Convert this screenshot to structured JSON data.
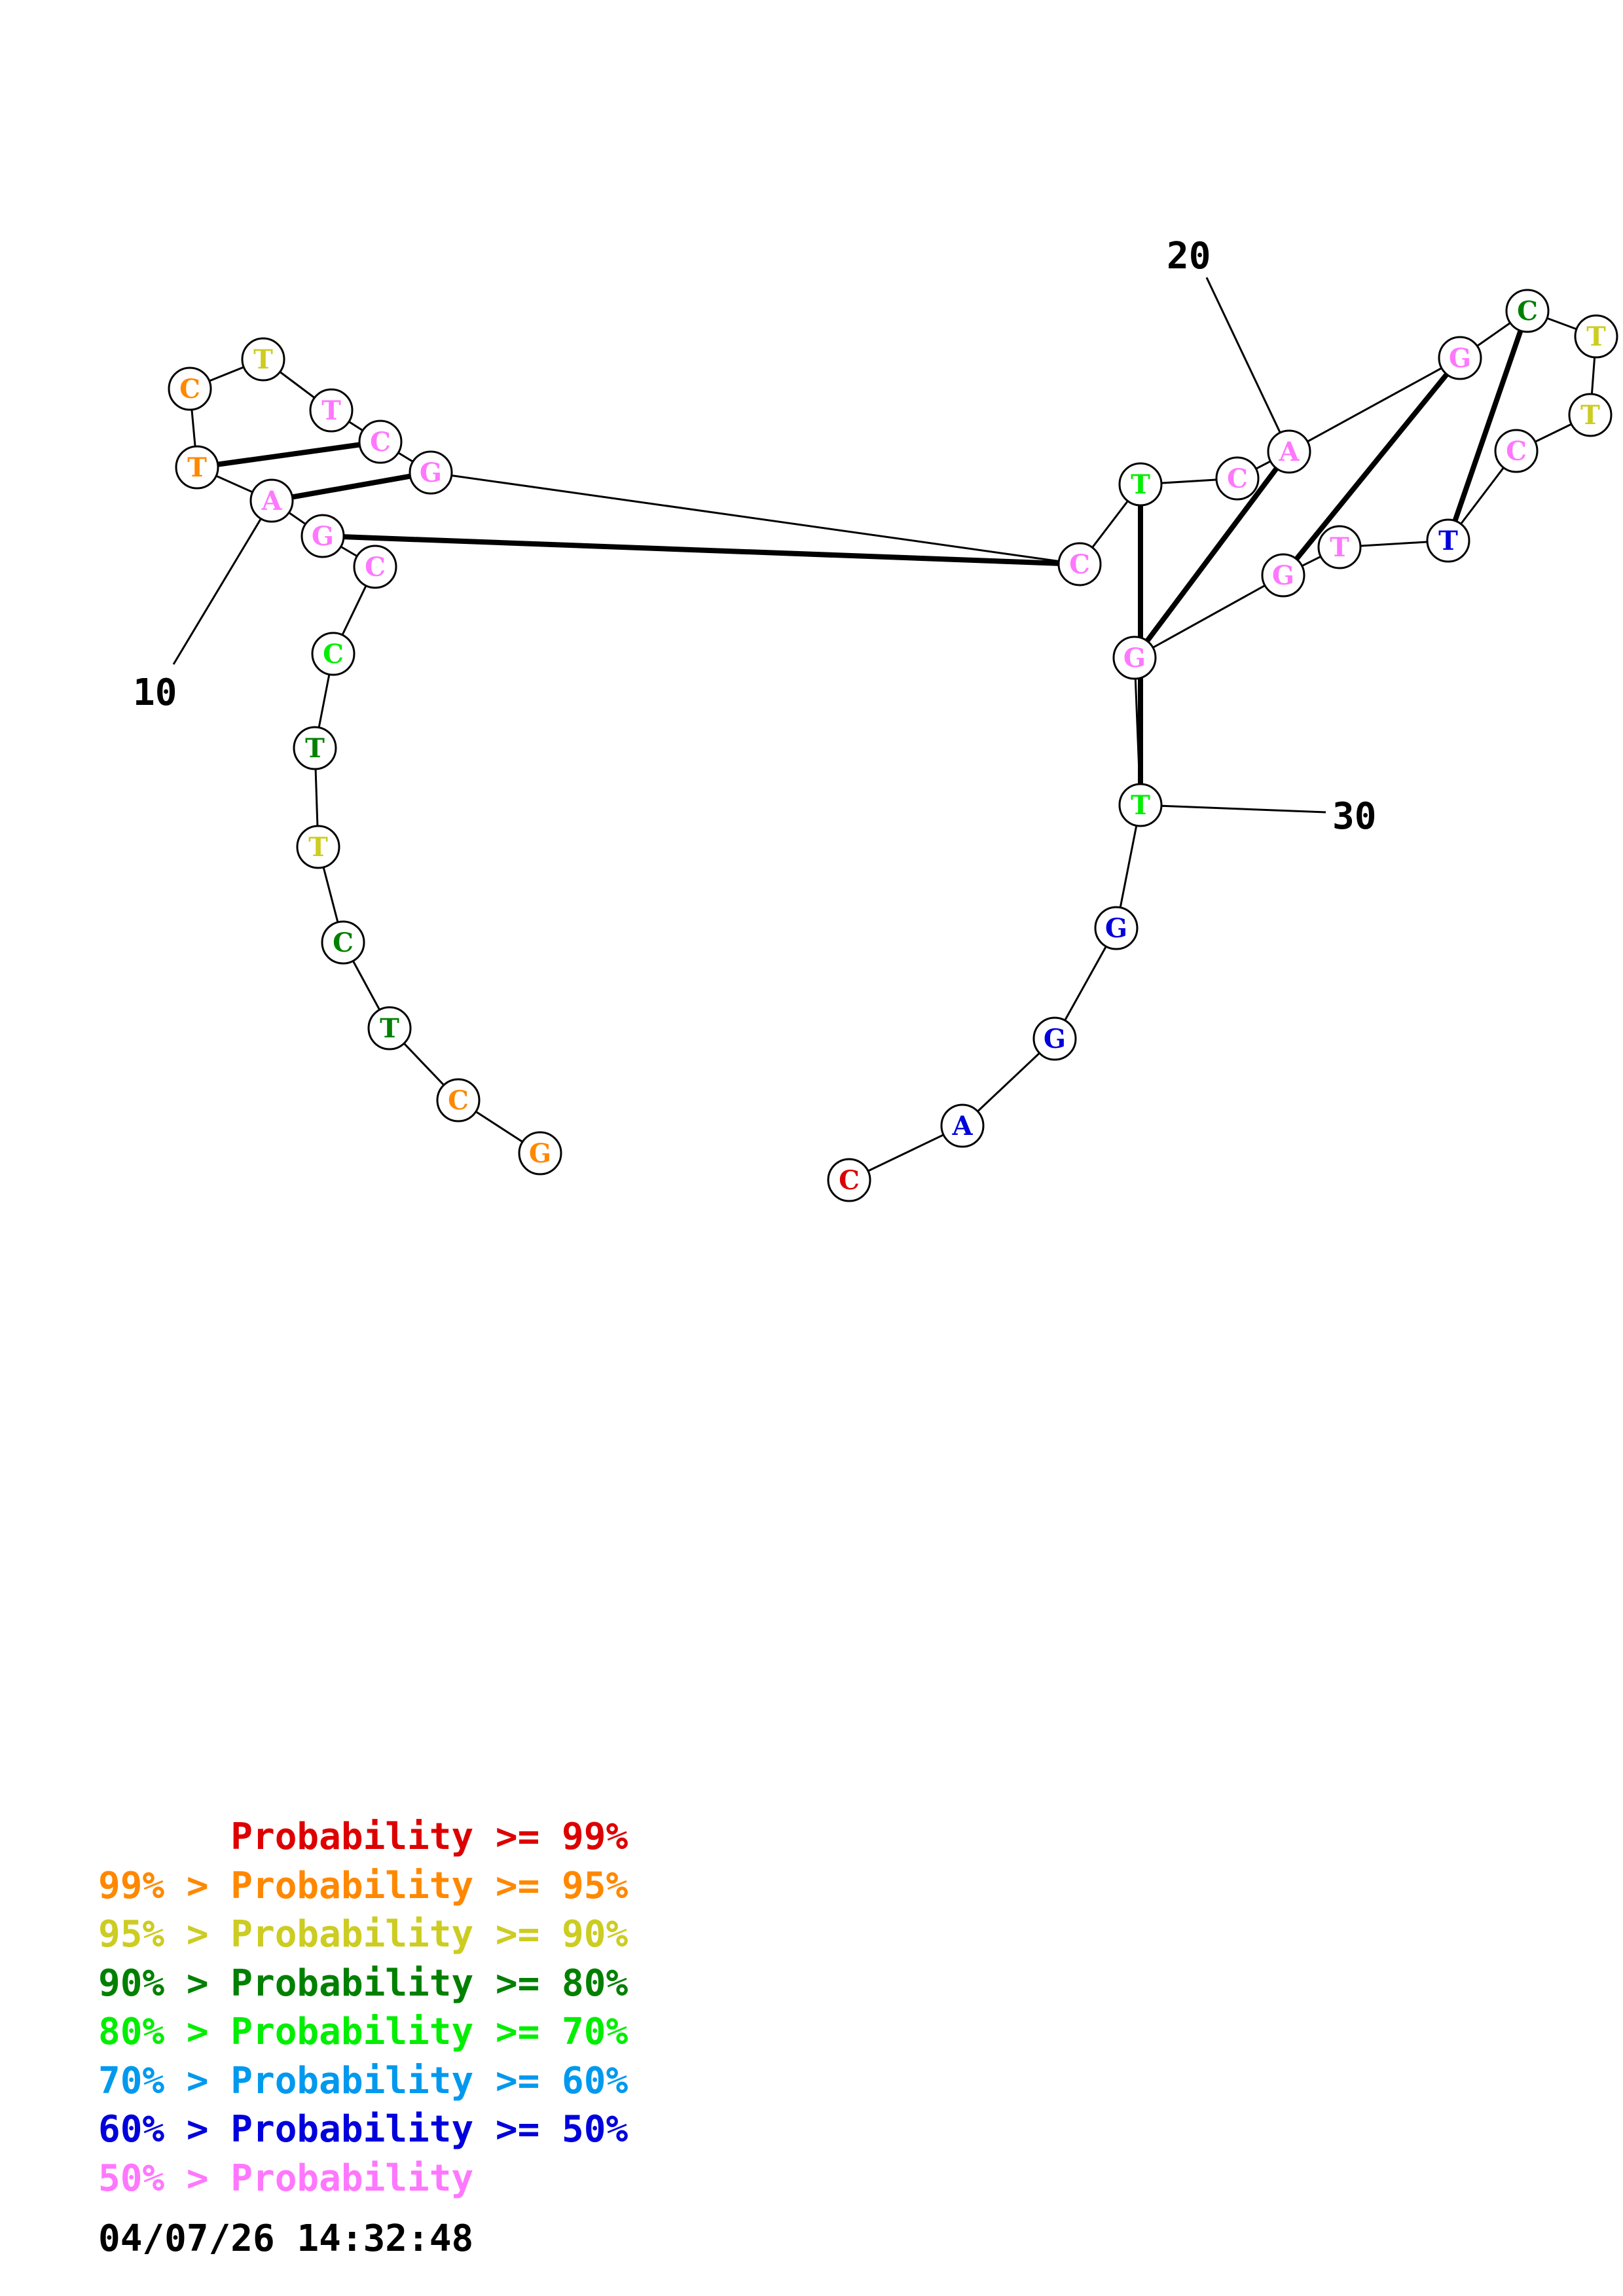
{
  "structure": {
    "nucleotides": [
      {
        "base": "G",
        "color": "#ff8800"
      },
      {
        "base": "C",
        "color": "#ff8800"
      },
      {
        "base": "T",
        "color": "#008000"
      },
      {
        "base": "C",
        "color": "#008000"
      },
      {
        "base": "T",
        "color": "#cccc22"
      },
      {
        "base": "T",
        "color": "#008000"
      },
      {
        "base": "C",
        "color": "#00ee00"
      },
      {
        "base": "C",
        "color": "#ff77ff"
      },
      {
        "base": "G",
        "color": "#ff77ff"
      },
      {
        "base": "A",
        "color": "#ff77ff"
      },
      {
        "base": "T",
        "color": "#ff8800"
      },
      {
        "base": "C",
        "color": "#ff8800"
      },
      {
        "base": "T",
        "color": "#cccc22"
      },
      {
        "base": "T",
        "color": "#ff77ff"
      },
      {
        "base": "C",
        "color": "#ff77ff"
      },
      {
        "base": "G",
        "color": "#ff77ff"
      },
      {
        "base": "C",
        "color": "#ff77ff"
      },
      {
        "base": "T",
        "color": "#00ee00"
      },
      {
        "base": "C",
        "color": "#ff77ff"
      },
      {
        "base": "A",
        "color": "#ff77ff"
      },
      {
        "base": "G",
        "color": "#ff77ff"
      },
      {
        "base": "C",
        "color": "#008000"
      },
      {
        "base": "T",
        "color": "#cccc22"
      },
      {
        "base": "T",
        "color": "#cccc22"
      },
      {
        "base": "C",
        "color": "#ff77ff"
      },
      {
        "base": "T",
        "color": "#0000dd"
      },
      {
        "base": "T",
        "color": "#ff77ff"
      },
      {
        "base": "G",
        "color": "#ff77ff"
      },
      {
        "base": "G",
        "color": "#ff77ff"
      },
      {
        "base": "T",
        "color": "#00ee00"
      },
      {
        "base": "G",
        "color": "#0000dd"
      },
      {
        "base": "G",
        "color": "#0000dd"
      },
      {
        "base": "A",
        "color": "#0000dd"
      },
      {
        "base": "C",
        "color": "#dd0000"
      }
    ],
    "pairs": [
      [
        8,
        16
      ],
      [
        9,
        15
      ],
      [
        10,
        14
      ],
      [
        17,
        29
      ],
      [
        19,
        28
      ],
      [
        20,
        27
      ],
      [
        21,
        25
      ]
    ],
    "number_labels": [
      {
        "index": 10,
        "text": "10"
      },
      {
        "index": 20,
        "text": "20"
      },
      {
        "index": 30,
        "text": "30"
      }
    ]
  },
  "legend": [
    {
      "text": "      Probability >= 99%",
      "color": "#dd0000"
    },
    {
      "text": "99% > Probability >= 95%",
      "color": "#ff8800"
    },
    {
      "text": "95% > Probability >= 90%",
      "color": "#cccc22"
    },
    {
      "text": "90% > Probability >= 80%",
      "color": "#008000"
    },
    {
      "text": "80% > Probability >= 70%",
      "color": "#00ee00"
    },
    {
      "text": "70% > Probability >= 60%",
      "color": "#0099ee"
    },
    {
      "text": "60% > Probability >= 50%",
      "color": "#0000dd"
    },
    {
      "text": "50% > Probability",
      "color": "#ff77ff"
    }
  ],
  "timestamp": "04/07/26 14:32:48"
}
